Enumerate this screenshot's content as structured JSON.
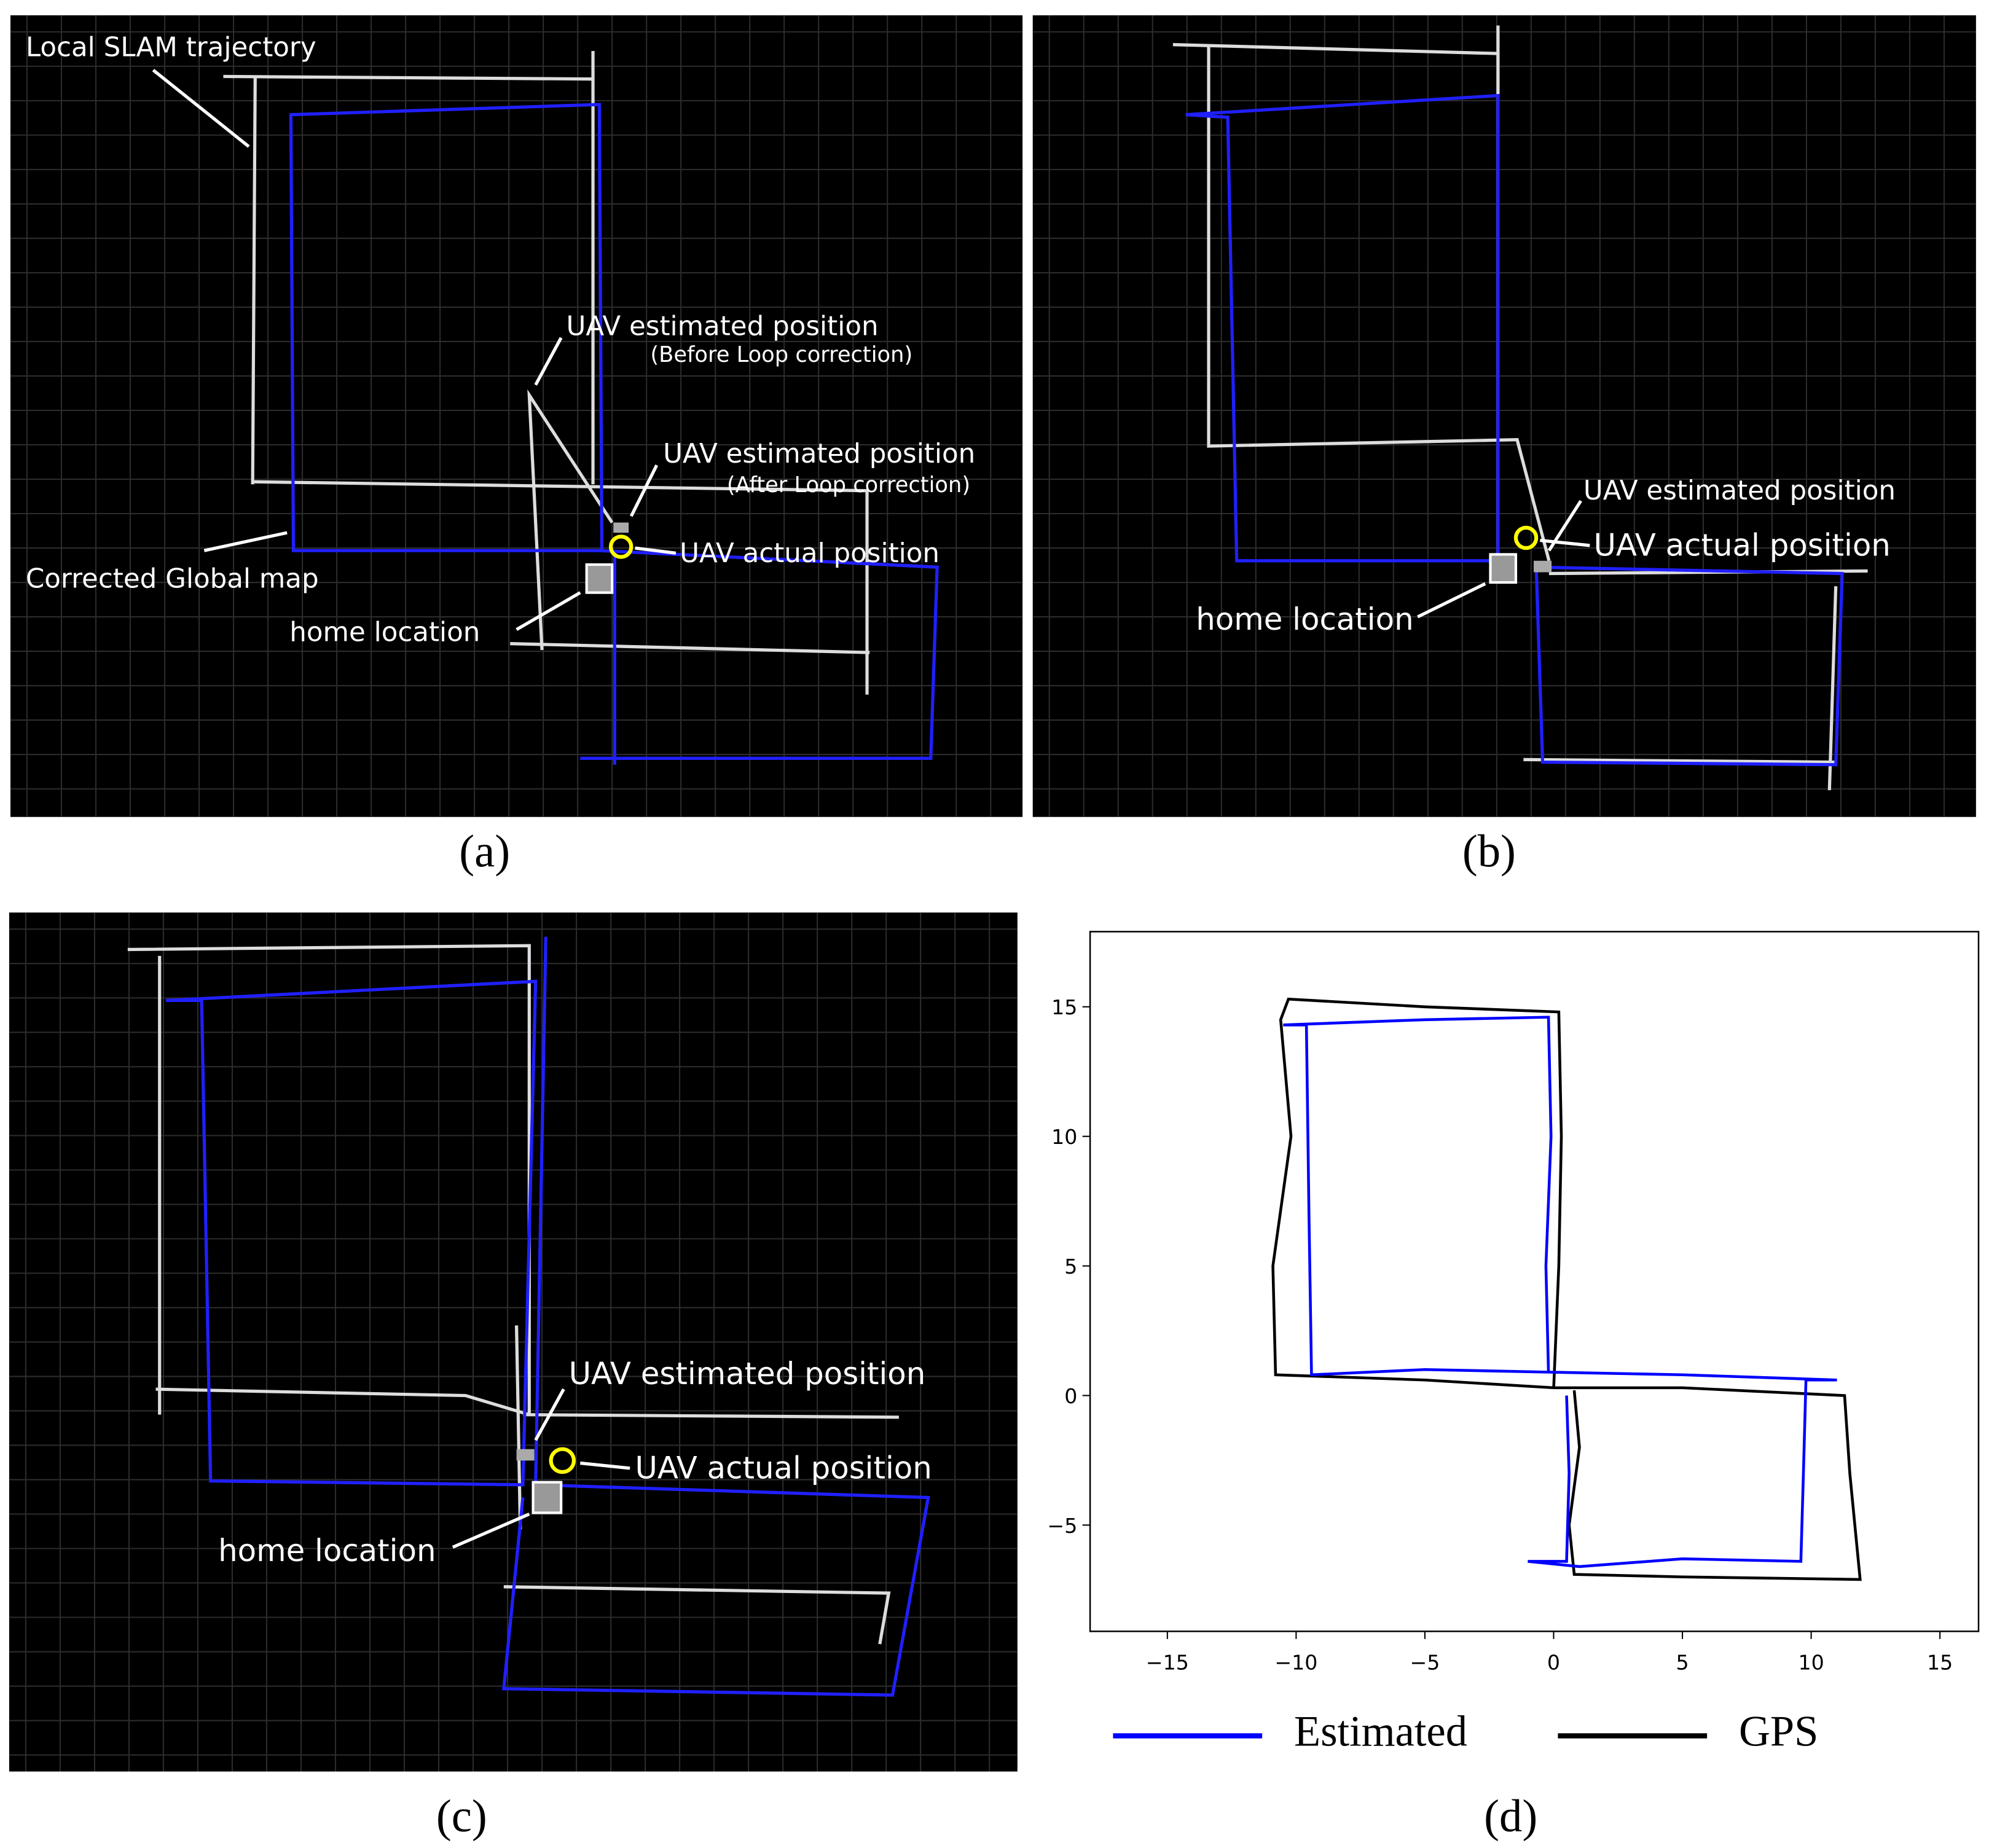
{
  "panels": [
    {
      "caption": "(a)",
      "annotations": [
        "Local SLAM trajectory",
        "UAV estimated position",
        "(Before Loop correction)",
        "UAV estimated position",
        "(After Loop correction)",
        "UAV actual position",
        "Corrected Global map",
        "home location"
      ]
    },
    {
      "caption": "(b)",
      "annotations": [
        "UAV estimated position",
        "UAV actual position",
        "home location"
      ]
    },
    {
      "caption": "(c)",
      "annotations": [
        "UAV estimated position",
        "UAV actual position",
        "home location"
      ]
    }
  ],
  "chart_data": {
    "type": "line",
    "caption": "(d)",
    "xlim": [
      -18,
      16.5
    ],
    "ylim": [
      -9.1,
      17.9
    ],
    "xticks": [
      {
        "value": -15,
        "label": "−15"
      },
      {
        "value": -10,
        "label": "−10"
      },
      {
        "value": -5,
        "label": "−5"
      },
      0,
      5,
      10,
      15
    ],
    "yticks": [
      {
        "value": -5,
        "label": "−5"
      },
      0,
      5,
      10,
      15
    ],
    "series": [
      {
        "name": "Estimated",
        "color": "#0000ff",
        "x": [
          -0.2,
          -0.3,
          -0.1,
          -0.2,
          -5,
          -10.5,
          -9.6,
          -9.5,
          -9.4,
          -5,
          0,
          5,
          11,
          9.8,
          9.7,
          9.6,
          5,
          1,
          -1,
          0.5,
          0.6,
          0.5
        ],
        "values": [
          0.9,
          5,
          10,
          14.6,
          14.5,
          14.3,
          14.3,
          7,
          0.8,
          1,
          0.9,
          0.8,
          0.6,
          0.6,
          -3,
          -6.4,
          -6.3,
          -6.6,
          -6.4,
          -6.4,
          -3,
          0
        ]
      },
      {
        "name": "GPS",
        "color": "#000000",
        "x": [
          0,
          0.2,
          0.3,
          0.2,
          -5,
          -10.3,
          -10.6,
          -10.2,
          -10.9,
          -10.8,
          -5,
          0,
          5,
          11.3,
          11.5,
          11.9,
          5,
          0.8,
          0.6,
          1,
          0.8
        ],
        "values": [
          0.3,
          5,
          10,
          14.8,
          15,
          15.3,
          14.5,
          10,
          5,
          0.8,
          0.6,
          0.3,
          0.3,
          0,
          -3,
          -7.1,
          -7,
          -6.9,
          -5,
          -2,
          0.2
        ]
      }
    ]
  }
}
